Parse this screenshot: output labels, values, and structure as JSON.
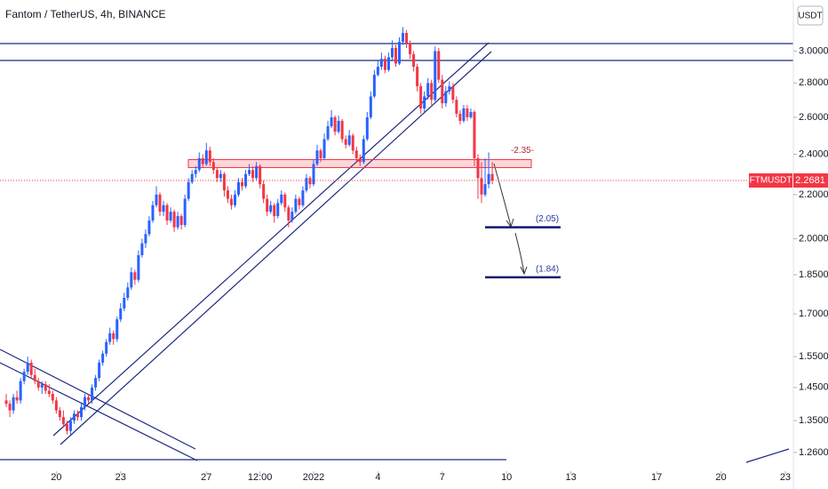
{
  "chart_data": {
    "type": "candlestick",
    "title": "Fantom / TetherUS, 4h, BINANCE",
    "currency": "USDT",
    "symbol": "FTMUSDT",
    "up_color": "#2962ff",
    "down_color": "#f23645",
    "log_scale": true,
    "grid": false,
    "ylim": [
      1.21,
      3.35
    ],
    "yticks": [
      {
        "value": 3,
        "label": "3.0000"
      },
      {
        "value": 2.8,
        "label": "2.8000"
      },
      {
        "value": 2.6,
        "label": "2.6000"
      },
      {
        "value": 2.4,
        "label": "2.4000"
      },
      {
        "value": 2.2,
        "label": "2.2000"
      },
      {
        "value": 2,
        "label": "2.0000"
      },
      {
        "value": 1.85,
        "label": "1.8500"
      },
      {
        "value": 1.7,
        "label": "1.7000"
      },
      {
        "value": 1.55,
        "label": "1.5500"
      },
      {
        "value": 1.45,
        "label": "1.4500"
      },
      {
        "value": 1.35,
        "label": "1.3500"
      },
      {
        "value": 1.26,
        "label": "1.2600"
      }
    ],
    "xlim": [
      "2021-12-17T09:00",
      "2022-01-23T09:00"
    ],
    "xticks": [
      {
        "value": "2021-12-20T00:00",
        "label": "20"
      },
      {
        "value": "2021-12-23T00:00",
        "label": "23"
      },
      {
        "value": "2021-12-27T00:00",
        "label": "27"
      },
      {
        "value": "2021-12-29T12:00",
        "label": "12:00"
      },
      {
        "value": "2022-01-01T00:00",
        "label": "2022"
      },
      {
        "value": "2022-01-04T00:00",
        "label": "4"
      },
      {
        "value": "2022-01-07T00:00",
        "label": "7"
      },
      {
        "value": "2022-01-10T00:00",
        "label": "10"
      },
      {
        "value": "2022-01-13T00:00",
        "label": "13"
      },
      {
        "value": "2022-01-17T00:00",
        "label": "17"
      },
      {
        "value": "2022-01-20T00:00",
        "label": "20"
      },
      {
        "value": "2022-01-23T00:00",
        "label": "23"
      }
    ],
    "last_price": 2.2681,
    "zone": {
      "value": 2.35,
      "label": "-2.35-"
    },
    "levels": [
      {
        "value": 2.05,
        "label": "(2.05)"
      },
      {
        "value": 1.84,
        "label": "(1.84)"
      }
    ],
    "x": [
      "2021-12-17T16:00",
      "2021-12-17T20:00",
      "2021-12-18T00:00",
      "2021-12-18T04:00",
      "2021-12-18T08:00",
      "2021-12-18T12:00",
      "2021-12-18T16:00",
      "2021-12-18T20:00",
      "2021-12-19T00:00",
      "2021-12-19T04:00",
      "2021-12-19T08:00",
      "2021-12-19T12:00",
      "2021-12-19T16:00",
      "2021-12-19T20:00",
      "2021-12-20T00:00",
      "2021-12-20T04:00",
      "2021-12-20T08:00",
      "2021-12-20T12:00",
      "2021-12-20T16:00",
      "2021-12-20T20:00",
      "2021-12-21T00:00",
      "2021-12-21T04:00",
      "2021-12-21T08:00",
      "2021-12-21T12:00",
      "2021-12-21T16:00",
      "2021-12-21T20:00",
      "2021-12-22T00:00",
      "2021-12-22T04:00",
      "2021-12-22T08:00",
      "2021-12-22T12:00",
      "2021-12-22T16:00",
      "2021-12-22T20:00",
      "2021-12-23T00:00",
      "2021-12-23T04:00",
      "2021-12-23T08:00",
      "2021-12-23T12:00",
      "2021-12-23T16:00",
      "2021-12-23T20:00",
      "2021-12-24T00:00",
      "2021-12-24T04:00",
      "2021-12-24T08:00",
      "2021-12-24T12:00",
      "2021-12-24T16:00",
      "2021-12-24T20:00",
      "2021-12-25T00:00",
      "2021-12-25T04:00",
      "2021-12-25T08:00",
      "2021-12-25T12:00",
      "2021-12-25T16:00",
      "2021-12-25T20:00",
      "2021-12-26T00:00",
      "2021-12-26T04:00",
      "2021-12-26T08:00",
      "2021-12-26T12:00",
      "2021-12-26T16:00",
      "2021-12-26T20:00",
      "2021-12-27T00:00",
      "2021-12-27T04:00",
      "2021-12-27T08:00",
      "2021-12-27T12:00",
      "2021-12-27T16:00",
      "2021-12-27T20:00",
      "2021-12-28T00:00",
      "2021-12-28T04:00",
      "2021-12-28T08:00",
      "2021-12-28T12:00",
      "2021-12-28T16:00",
      "2021-12-28T20:00",
      "2021-12-29T00:00",
      "2021-12-29T04:00",
      "2021-12-29T08:00",
      "2021-12-29T12:00",
      "2021-12-29T16:00",
      "2021-12-29T20:00",
      "2021-12-30T00:00",
      "2021-12-30T04:00",
      "2021-12-30T08:00",
      "2021-12-30T12:00",
      "2021-12-30T16:00",
      "2021-12-30T20:00",
      "2021-12-31T00:00",
      "2021-12-31T04:00",
      "2021-12-31T08:00",
      "2021-12-31T12:00",
      "2021-12-31T16:00",
      "2021-12-31T20:00",
      "2022-01-01T00:00",
      "2022-01-01T04:00",
      "2022-01-01T08:00",
      "2022-01-01T12:00",
      "2022-01-01T16:00",
      "2022-01-01T20:00",
      "2022-01-02T00:00",
      "2022-01-02T04:00",
      "2022-01-02T08:00",
      "2022-01-02T12:00",
      "2022-01-02T16:00",
      "2022-01-02T20:00",
      "2022-01-03T00:00",
      "2022-01-03T04:00",
      "2022-01-03T08:00",
      "2022-01-03T12:00",
      "2022-01-03T16:00",
      "2022-01-03T20:00",
      "2022-01-04T00:00",
      "2022-01-04T04:00",
      "2022-01-04T08:00",
      "2022-01-04T12:00",
      "2022-01-04T16:00",
      "2022-01-04T20:00",
      "2022-01-05T00:00",
      "2022-01-05T04:00",
      "2022-01-05T08:00",
      "2022-01-05T12:00",
      "2022-01-05T16:00",
      "2022-01-05T20:00",
      "2022-01-06T00:00",
      "2022-01-06T04:00",
      "2022-01-06T08:00",
      "2022-01-06T12:00",
      "2022-01-06T16:00",
      "2022-01-06T20:00",
      "2022-01-07T00:00",
      "2022-01-07T04:00",
      "2022-01-07T08:00",
      "2022-01-07T12:00",
      "2022-01-07T16:00",
      "2022-01-07T20:00",
      "2022-01-08T00:00",
      "2022-01-08T04:00",
      "2022-01-08T08:00",
      "2022-01-08T12:00",
      "2022-01-08T16:00",
      "2022-01-08T20:00",
      "2022-01-09T00:00",
      "2022-01-09T04:00",
      "2022-01-09T08:00"
    ],
    "ohlc": [
      [
        1.41,
        1.43,
        1.39,
        1.4
      ],
      [
        1.4,
        1.41,
        1.36,
        1.38
      ],
      [
        1.38,
        1.43,
        1.37,
        1.42
      ],
      [
        1.42,
        1.44,
        1.4,
        1.41
      ],
      [
        1.41,
        1.48,
        1.4,
        1.47
      ],
      [
        1.47,
        1.51,
        1.46,
        1.5
      ],
      [
        1.5,
        1.55,
        1.49,
        1.53
      ],
      [
        1.53,
        1.54,
        1.48,
        1.49
      ],
      [
        1.49,
        1.51,
        1.46,
        1.47
      ],
      [
        1.47,
        1.48,
        1.44,
        1.45
      ],
      [
        1.45,
        1.47,
        1.43,
        1.46
      ],
      [
        1.46,
        1.47,
        1.43,
        1.44
      ],
      [
        1.44,
        1.46,
        1.42,
        1.43
      ],
      [
        1.43,
        1.44,
        1.4,
        1.41
      ],
      [
        1.41,
        1.42,
        1.37,
        1.38
      ],
      [
        1.38,
        1.39,
        1.35,
        1.36
      ],
      [
        1.36,
        1.38,
        1.33,
        1.34
      ],
      [
        1.34,
        1.35,
        1.31,
        1.32
      ],
      [
        1.32,
        1.36,
        1.31,
        1.35
      ],
      [
        1.35,
        1.38,
        1.34,
        1.37
      ],
      [
        1.37,
        1.38,
        1.35,
        1.36
      ],
      [
        1.36,
        1.4,
        1.35,
        1.39
      ],
      [
        1.39,
        1.43,
        1.38,
        1.42
      ],
      [
        1.42,
        1.43,
        1.4,
        1.41
      ],
      [
        1.41,
        1.46,
        1.4,
        1.45
      ],
      [
        1.45,
        1.49,
        1.44,
        1.48
      ],
      [
        1.48,
        1.54,
        1.47,
        1.53
      ],
      [
        1.53,
        1.57,
        1.52,
        1.56
      ],
      [
        1.56,
        1.61,
        1.55,
        1.6
      ],
      [
        1.6,
        1.65,
        1.59,
        1.63
      ],
      [
        1.63,
        1.64,
        1.59,
        1.61
      ],
      [
        1.61,
        1.69,
        1.6,
        1.68
      ],
      [
        1.68,
        1.74,
        1.67,
        1.72
      ],
      [
        1.72,
        1.78,
        1.71,
        1.76
      ],
      [
        1.76,
        1.82,
        1.75,
        1.8
      ],
      [
        1.8,
        1.88,
        1.79,
        1.86
      ],
      [
        1.86,
        1.87,
        1.81,
        1.83
      ],
      [
        1.83,
        1.95,
        1.82,
        1.93
      ],
      [
        1.93,
        2.0,
        1.92,
        1.98
      ],
      [
        1.98,
        2.04,
        1.96,
        2.02
      ],
      [
        2.02,
        2.1,
        2.01,
        2.08
      ],
      [
        2.08,
        2.17,
        2.07,
        2.15
      ],
      [
        2.15,
        2.24,
        2.14,
        2.2
      ],
      [
        2.2,
        2.21,
        2.1,
        2.12
      ],
      [
        2.12,
        2.17,
        2.1,
        2.15
      ],
      [
        2.15,
        2.16,
        2.06,
        2.08
      ],
      [
        2.08,
        2.14,
        2.07,
        2.12
      ],
      [
        2.12,
        2.13,
        2.03,
        2.05
      ],
      [
        2.05,
        2.12,
        2.04,
        2.1
      ],
      [
        2.1,
        2.11,
        2.04,
        2.06
      ],
      [
        2.06,
        2.2,
        2.05,
        2.18
      ],
      [
        2.18,
        2.28,
        2.17,
        2.26
      ],
      [
        2.26,
        2.32,
        2.25,
        2.3
      ],
      [
        2.3,
        2.34,
        2.28,
        2.32
      ],
      [
        2.32,
        2.41,
        2.31,
        2.38
      ],
      [
        2.38,
        2.4,
        2.33,
        2.35
      ],
      [
        2.35,
        2.46,
        2.34,
        2.42
      ],
      [
        2.42,
        2.44,
        2.34,
        2.36
      ],
      [
        2.36,
        2.38,
        2.3,
        2.32
      ],
      [
        2.32,
        2.33,
        2.26,
        2.28
      ],
      [
        2.28,
        2.32,
        2.26,
        2.3
      ],
      [
        2.3,
        2.31,
        2.19,
        2.22
      ],
      [
        2.22,
        2.24,
        2.16,
        2.18
      ],
      [
        2.18,
        2.2,
        2.13,
        2.15
      ],
      [
        2.15,
        2.22,
        2.14,
        2.2
      ],
      [
        2.2,
        2.28,
        2.19,
        2.26
      ],
      [
        2.26,
        2.28,
        2.22,
        2.24
      ],
      [
        2.24,
        2.32,
        2.23,
        2.3
      ],
      [
        2.3,
        2.35,
        2.29,
        2.32
      ],
      [
        2.32,
        2.34,
        2.26,
        2.28
      ],
      [
        2.28,
        2.36,
        2.27,
        2.34
      ],
      [
        2.34,
        2.35,
        2.23,
        2.25
      ],
      [
        2.25,
        2.27,
        2.16,
        2.18
      ],
      [
        2.18,
        2.2,
        2.1,
        2.12
      ],
      [
        2.12,
        2.17,
        2.11,
        2.15
      ],
      [
        2.15,
        2.16,
        2.07,
        2.1
      ],
      [
        2.1,
        2.18,
        2.09,
        2.16
      ],
      [
        2.16,
        2.22,
        2.15,
        2.2
      ],
      [
        2.2,
        2.21,
        2.12,
        2.14
      ],
      [
        2.14,
        2.15,
        2.05,
        2.08
      ],
      [
        2.08,
        2.14,
        2.07,
        2.12
      ],
      [
        2.12,
        2.2,
        2.11,
        2.18
      ],
      [
        2.18,
        2.19,
        2.13,
        2.15
      ],
      [
        2.15,
        2.24,
        2.14,
        2.22
      ],
      [
        2.22,
        2.3,
        2.21,
        2.28
      ],
      [
        2.28,
        2.29,
        2.23,
        2.25
      ],
      [
        2.25,
        2.37,
        2.24,
        2.35
      ],
      [
        2.35,
        2.45,
        2.34,
        2.42
      ],
      [
        2.42,
        2.43,
        2.36,
        2.38
      ],
      [
        2.38,
        2.51,
        2.37,
        2.48
      ],
      [
        2.48,
        2.58,
        2.47,
        2.55
      ],
      [
        2.55,
        2.64,
        2.54,
        2.6
      ],
      [
        2.6,
        2.61,
        2.5,
        2.52
      ],
      [
        2.52,
        2.61,
        2.51,
        2.58
      ],
      [
        2.58,
        2.59,
        2.46,
        2.48
      ],
      [
        2.48,
        2.5,
        2.43,
        2.45
      ],
      [
        2.45,
        2.53,
        2.44,
        2.5
      ],
      [
        2.5,
        2.51,
        2.4,
        2.42
      ],
      [
        2.42,
        2.44,
        2.36,
        2.38
      ],
      [
        2.38,
        2.4,
        2.34,
        2.36
      ],
      [
        2.36,
        2.5,
        2.35,
        2.48
      ],
      [
        2.48,
        2.63,
        2.47,
        2.6
      ],
      [
        2.6,
        2.75,
        2.59,
        2.72
      ],
      [
        2.72,
        2.88,
        2.71,
        2.85
      ],
      [
        2.85,
        2.94,
        2.84,
        2.9
      ],
      [
        2.9,
        2.99,
        2.88,
        2.95
      ],
      [
        2.95,
        2.97,
        2.86,
        2.88
      ],
      [
        2.88,
        2.99,
        2.87,
        2.96
      ],
      [
        2.96,
        3.07,
        2.94,
        3.02
      ],
      [
        3.02,
        3.04,
        2.9,
        2.92
      ],
      [
        2.92,
        3.09,
        2.91,
        3.06
      ],
      [
        3.06,
        3.16,
        3.04,
        3.12
      ],
      [
        3.12,
        3.14,
        3.02,
        3.05
      ],
      [
        3.05,
        3.07,
        2.95,
        2.98
      ],
      [
        2.98,
        3.0,
        2.87,
        2.9
      ],
      [
        2.9,
        2.92,
        2.75,
        2.78
      ],
      [
        2.78,
        2.8,
        2.62,
        2.65
      ],
      [
        2.65,
        2.75,
        2.63,
        2.72
      ],
      [
        2.72,
        2.83,
        2.7,
        2.8
      ],
      [
        2.8,
        2.82,
        2.67,
        2.7
      ],
      [
        2.7,
        3.03,
        2.69,
        3.0
      ],
      [
        3.0,
        3.02,
        2.8,
        2.82
      ],
      [
        2.82,
        2.85,
        2.65,
        2.68
      ],
      [
        2.68,
        2.78,
        2.66,
        2.75
      ],
      [
        2.75,
        2.81,
        2.73,
        2.78
      ],
      [
        2.78,
        2.8,
        2.68,
        2.7
      ],
      [
        2.7,
        2.72,
        2.6,
        2.62
      ],
      [
        2.62,
        2.64,
        2.56,
        2.58
      ],
      [
        2.58,
        2.67,
        2.57,
        2.65
      ],
      [
        2.65,
        2.67,
        2.58,
        2.6
      ],
      [
        2.6,
        2.65,
        2.59,
        2.63
      ],
      [
        2.63,
        2.64,
        2.34,
        2.38
      ],
      [
        2.38,
        2.4,
        2.18,
        2.28
      ],
      [
        2.28,
        2.36,
        2.16,
        2.2
      ],
      [
        2.2,
        2.38,
        2.19,
        2.25
      ],
      [
        2.25,
        2.41,
        2.23,
        2.3
      ],
      [
        2.3,
        2.36,
        2.25,
        2.2681
      ]
    ]
  }
}
